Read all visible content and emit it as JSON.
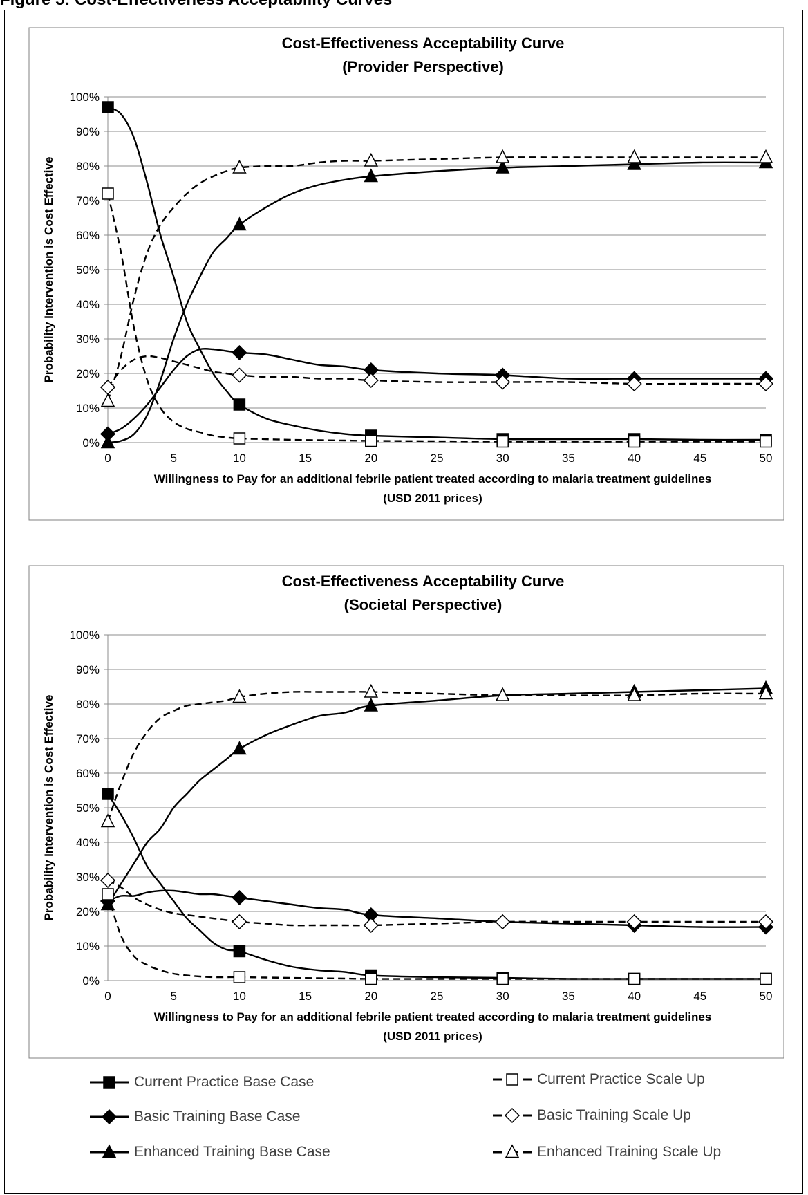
{
  "caption": "Figure 5: Cost-Effectiveness Acceptability Curves",
  "chart_data": [
    {
      "type": "line",
      "title": "Cost-Effectiveness Acceptability Curve",
      "subtitle": "(Provider Perspective)",
      "ylabel": "Probability Intervention is Cost Effective",
      "xlabel": "Willingness to Pay for an additional febrile patient treated according to malaria treatment guidelines",
      "xlabel2": "(USD 2011 prices)",
      "xlim": [
        0,
        50
      ],
      "ylim": [
        0,
        100
      ],
      "x_ticks": [
        0,
        5,
        10,
        15,
        20,
        25,
        30,
        35,
        40,
        45,
        50
      ],
      "y_ticks": [
        "0%",
        "10%",
        "20%",
        "30%",
        "40%",
        "50%",
        "60%",
        "70%",
        "80%",
        "90%",
        "100%"
      ],
      "grid": true,
      "marker_x": [
        0,
        10,
        20,
        30,
        40,
        50
      ],
      "series": [
        {
          "name": "Current Practice Base Case",
          "dashed": false,
          "marker": "square-filled",
          "x": [
            0,
            1,
            2,
            3,
            4,
            5,
            6,
            7,
            8,
            9,
            10,
            12,
            14,
            16,
            18,
            20,
            25,
            30,
            35,
            40,
            45,
            50
          ],
          "y": [
            97,
            95,
            88,
            75,
            60,
            48,
            35,
            27,
            20,
            15,
            11,
            7,
            5,
            3.5,
            2.5,
            2,
            1.5,
            1,
            1,
            1,
            0.8,
            0.8
          ]
        },
        {
          "name": "Basic Training Base Case",
          "dashed": false,
          "marker": "diamond-filled",
          "x": [
            0,
            1,
            2,
            3,
            4,
            5,
            6,
            7,
            8,
            9,
            10,
            12,
            14,
            16,
            18,
            20,
            25,
            30,
            35,
            40,
            45,
            50
          ],
          "y": [
            2.5,
            4,
            7,
            11,
            16,
            21,
            25,
            27,
            27,
            26.5,
            26,
            25.5,
            24,
            22.5,
            22,
            21,
            20,
            19.5,
            18.5,
            18.5,
            18.5,
            18.5
          ]
        },
        {
          "name": "Enhanced Training Base Case",
          "dashed": false,
          "marker": "triangle-filled",
          "x": [
            0,
            1,
            2,
            3,
            4,
            5,
            6,
            7,
            8,
            9,
            10,
            12,
            14,
            16,
            18,
            20,
            25,
            30,
            35,
            40,
            45,
            50
          ],
          "y": [
            0,
            0.5,
            2.5,
            8,
            18,
            30,
            40,
            48,
            55,
            59,
            63,
            68,
            72,
            74.5,
            76,
            77,
            78.5,
            79.5,
            80,
            80.5,
            81,
            81
          ]
        },
        {
          "name": "Current Practice Scale Up",
          "dashed": true,
          "marker": "square-open",
          "x": [
            0,
            1,
            2,
            3,
            4,
            5,
            6,
            7,
            8,
            9,
            10,
            12,
            14,
            16,
            18,
            20,
            25,
            30,
            35,
            40,
            45,
            50
          ],
          "y": [
            72,
            55,
            33,
            18,
            10,
            6,
            4,
            3,
            2,
            1.5,
            1.2,
            1,
            0.8,
            0.7,
            0.6,
            0.5,
            0.4,
            0.3,
            0.3,
            0.3,
            0.3,
            0.3
          ]
        },
        {
          "name": "Basic Training Scale Up",
          "dashed": true,
          "marker": "diamond-open",
          "x": [
            0,
            1,
            2,
            3,
            4,
            5,
            6,
            7,
            8,
            9,
            10,
            12,
            14,
            16,
            18,
            20,
            25,
            30,
            35,
            40,
            45,
            50
          ],
          "y": [
            16,
            21,
            24,
            25,
            24.5,
            23.5,
            22.5,
            21.5,
            20.5,
            20,
            19.5,
            19,
            19,
            18.5,
            18.5,
            18,
            17.5,
            17.5,
            17.5,
            17,
            17,
            17
          ]
        },
        {
          "name": "Enhanced Training Scale Up",
          "dashed": true,
          "marker": "triangle-open",
          "x": [
            0,
            1,
            2,
            3,
            4,
            5,
            6,
            7,
            8,
            9,
            10,
            12,
            14,
            16,
            18,
            20,
            25,
            30,
            35,
            40,
            45,
            50
          ],
          "y": [
            12,
            25,
            42,
            55,
            63,
            68,
            72,
            75,
            77,
            78.5,
            79.5,
            80,
            80,
            81,
            81.5,
            81.5,
            82,
            82.5,
            82.5,
            82.5,
            82.5,
            82.5
          ]
        }
      ]
    },
    {
      "type": "line",
      "title": "Cost-Effectiveness Acceptability Curve",
      "subtitle": "(Societal Perspective)",
      "ylabel": "Probability Intervention is Cost Effective",
      "xlabel": "Willingness to Pay for an additional febrile patient treated according to malaria treatment guidelines",
      "xlabel2": "(USD 2011 prices)",
      "xlim": [
        0,
        50
      ],
      "ylim": [
        0,
        100
      ],
      "x_ticks": [
        0,
        5,
        10,
        15,
        20,
        25,
        30,
        35,
        40,
        45,
        50
      ],
      "y_ticks": [
        "0%",
        "10%",
        "20%",
        "30%",
        "40%",
        "50%",
        "60%",
        "70%",
        "80%",
        "90%",
        "100%"
      ],
      "grid": true,
      "marker_x": [
        0,
        10,
        20,
        30,
        40,
        50
      ],
      "series": [
        {
          "name": "Current Practice Base Case",
          "dashed": false,
          "marker": "square-filled",
          "x": [
            0,
            1,
            2,
            3,
            4,
            5,
            6,
            7,
            8,
            9,
            10,
            12,
            14,
            16,
            18,
            20,
            25,
            30,
            35,
            40,
            45,
            50
          ],
          "y": [
            54,
            48,
            41,
            33,
            28,
            23,
            18,
            14.5,
            11,
            9,
            8.5,
            6,
            4,
            3,
            2.5,
            1.5,
            1,
            0.8,
            0.5,
            0.5,
            0.5,
            0.5
          ]
        },
        {
          "name": "Basic Training Base Case",
          "dashed": false,
          "marker": "diamond-filled",
          "x": [
            0,
            1,
            2,
            3,
            4,
            5,
            6,
            7,
            8,
            9,
            10,
            12,
            14,
            16,
            18,
            20,
            25,
            30,
            35,
            40,
            45,
            50
          ],
          "y": [
            23,
            24.5,
            24.5,
            25.5,
            26,
            26,
            25.5,
            25,
            25,
            24.5,
            24,
            23,
            22,
            21,
            20.5,
            19,
            18,
            17,
            16.5,
            16,
            15.5,
            15.5
          ]
        },
        {
          "name": "Enhanced Training Base Case",
          "dashed": false,
          "marker": "triangle-filled",
          "x": [
            0,
            1,
            2,
            3,
            4,
            5,
            6,
            7,
            8,
            9,
            10,
            12,
            14,
            16,
            18,
            20,
            25,
            30,
            35,
            40,
            45,
            50
          ],
          "y": [
            22,
            28,
            34,
            40,
            44,
            50,
            54,
            58,
            61,
            64,
            67,
            71,
            74,
            76.5,
            77.5,
            79.5,
            81,
            82.5,
            83,
            83.5,
            84,
            84.5
          ]
        },
        {
          "name": "Current Practice Scale Up",
          "dashed": true,
          "marker": "square-open",
          "x": [
            0,
            1,
            2,
            3,
            4,
            5,
            6,
            7,
            8,
            9,
            10,
            12,
            14,
            16,
            18,
            20,
            25,
            30,
            35,
            40,
            45,
            50
          ],
          "y": [
            25,
            13,
            7,
            4.5,
            3,
            2,
            1.5,
            1.2,
            1,
            1,
            1,
            0.9,
            0.8,
            0.7,
            0.6,
            0.5,
            0.5,
            0.5,
            0.5,
            0.5,
            0.5,
            0.5
          ]
        },
        {
          "name": "Basic Training Scale Up",
          "dashed": true,
          "marker": "diamond-open",
          "x": [
            0,
            1,
            2,
            3,
            4,
            5,
            6,
            7,
            8,
            9,
            10,
            12,
            14,
            16,
            18,
            20,
            25,
            30,
            35,
            40,
            45,
            50
          ],
          "y": [
            29,
            27,
            24,
            22,
            20.5,
            19.5,
            19,
            18.5,
            18,
            17.5,
            17,
            16.5,
            16,
            16,
            16,
            16,
            16.5,
            17,
            17,
            17,
            17,
            17
          ]
        },
        {
          "name": "Enhanced Training Scale Up",
          "dashed": true,
          "marker": "triangle-open",
          "x": [
            0,
            1,
            2,
            3,
            4,
            5,
            6,
            7,
            8,
            9,
            10,
            12,
            14,
            16,
            18,
            20,
            25,
            30,
            35,
            40,
            45,
            50
          ],
          "y": [
            46,
            57,
            66,
            72,
            76,
            78,
            79.5,
            80,
            80.5,
            81,
            82,
            83,
            83.5,
            83.5,
            83.5,
            83.5,
            83,
            82.5,
            82.5,
            82.5,
            83,
            83
          ]
        }
      ]
    }
  ],
  "legend": {
    "items": [
      {
        "label": "Current Practice Base Case",
        "dashed": false,
        "marker": "square-filled"
      },
      {
        "label": "Current Practice Scale Up",
        "dashed": true,
        "marker": "square-open"
      },
      {
        "label": "Basic Training Base Case",
        "dashed": false,
        "marker": "diamond-filled"
      },
      {
        "label": "Basic Training Scale Up",
        "dashed": true,
        "marker": "diamond-open"
      },
      {
        "label": "Enhanced Training Base Case",
        "dashed": false,
        "marker": "triangle-filled"
      },
      {
        "label": "Enhanced Training Scale Up",
        "dashed": true,
        "marker": "triangle-open"
      }
    ]
  }
}
